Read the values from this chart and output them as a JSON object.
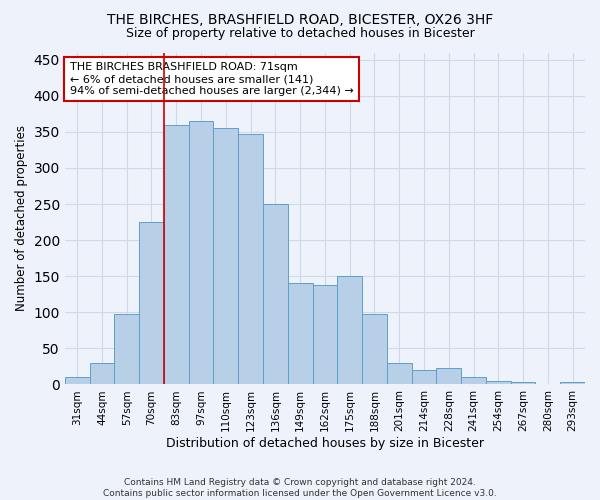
{
  "title1": "THE BIRCHES, BRASHFIELD ROAD, BICESTER, OX26 3HF",
  "title2": "Size of property relative to detached houses in Bicester",
  "xlabel": "Distribution of detached houses by size in Bicester",
  "ylabel": "Number of detached properties",
  "categories": [
    "31sqm",
    "44sqm",
    "57sqm",
    "70sqm",
    "83sqm",
    "97sqm",
    "110sqm",
    "123sqm",
    "136sqm",
    "149sqm",
    "162sqm",
    "175sqm",
    "188sqm",
    "201sqm",
    "214sqm",
    "228sqm",
    "241sqm",
    "254sqm",
    "267sqm",
    "280sqm",
    "293sqm"
  ],
  "values": [
    10,
    30,
    98,
    225,
    360,
    365,
    355,
    347,
    250,
    140,
    138,
    150,
    97,
    30,
    20,
    23,
    11,
    5,
    4,
    0,
    4
  ],
  "bar_color": "#b8cfe8",
  "bar_edge_color": "#5f9fca",
  "grid_color": "#d0d8e8",
  "background_color": "#eef2fa",
  "red_line_x": 3.5,
  "annotation_text": "THE BIRCHES BRASHFIELD ROAD: 71sqm\n← 6% of detached houses are smaller (141)\n94% of semi-detached houses are larger (2,344) →",
  "annotation_box_color": "#ffffff",
  "annotation_box_edge_color": "#cc0000",
  "footer_text": "Contains HM Land Registry data © Crown copyright and database right 2024.\nContains public sector information licensed under the Open Government Licence v3.0.",
  "ylim": [
    0,
    460
  ],
  "yticks": [
    0,
    50,
    100,
    150,
    200,
    250,
    300,
    350,
    400,
    450
  ]
}
